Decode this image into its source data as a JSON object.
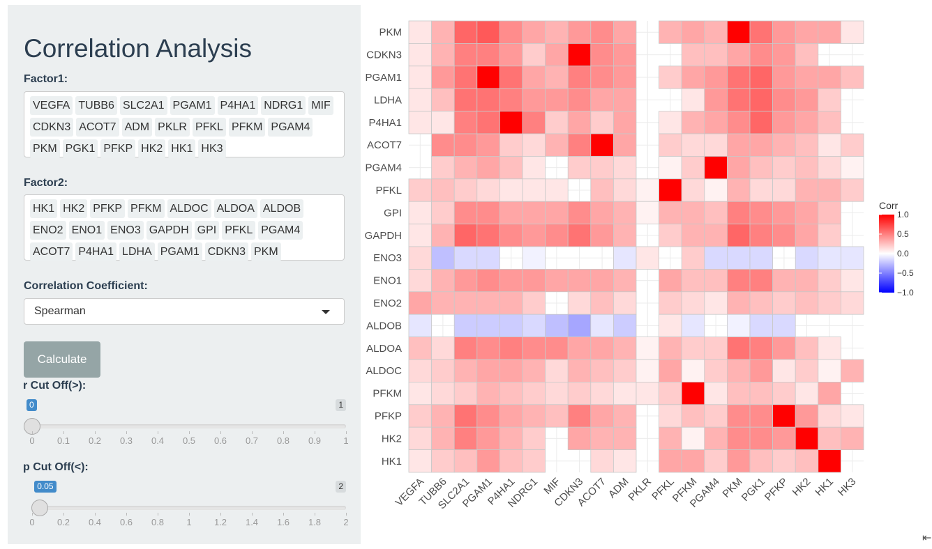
{
  "sidebar": {
    "title": "Correlation Analysis",
    "factor1_label": "Factor1:",
    "factor1_tags": [
      "VEGFA",
      "TUBB6",
      "SLC2A1",
      "PGAM1",
      "P4HA1",
      "NDRG1",
      "MIF",
      "CDKN3",
      "ACOT7",
      "ADM",
      "PKLR",
      "PFKL",
      "PFKM",
      "PGAM4",
      "PKM",
      "PGK1",
      "PFKP",
      "HK2",
      "HK1",
      "HK3"
    ],
    "factor2_label": "Factor2:",
    "factor2_tags": [
      "HK1",
      "HK2",
      "PFKP",
      "PFKM",
      "ALDOC",
      "ALDOA",
      "ALDOB",
      "ENO2",
      "ENO1",
      "ENO3",
      "GAPDH",
      "GPI",
      "PFKL",
      "PGAM4",
      "ACOT7",
      "P4HA1",
      "LDHA",
      "PGAM1",
      "CDKN3",
      "PKM"
    ],
    "coef_label": "Correlation Coefficient:",
    "coef_value": "Spearman",
    "calculate_label": "Calculate",
    "r_cutoff": {
      "label": "r Cut Off(>):",
      "value": 0,
      "value_label": "0",
      "min": 0,
      "max": 1,
      "max_label": "1",
      "ticks": [
        "0",
        "0.1",
        "0.2",
        "0.3",
        "0.4",
        "0.5",
        "0.6",
        "0.7",
        "0.8",
        "0.9",
        "1"
      ]
    },
    "p_cutoff": {
      "label": "p Cut Off(<):",
      "value": 0.05,
      "value_label": "0.05",
      "min": 0,
      "max": 2,
      "max_label": "2",
      "ticks": [
        "0",
        "0.2",
        "0.4",
        "0.6",
        "0.8",
        "1",
        "1.2",
        "1.4",
        "1.6",
        "1.8",
        "2"
      ]
    }
  },
  "chart_data": {
    "type": "heatmap",
    "x": [
      "VEGFA",
      "TUBB6",
      "SLC2A1",
      "PGAM1",
      "P4HA1",
      "NDRG1",
      "MIF",
      "CDKN3",
      "ACOT7",
      "ADM",
      "PKLR",
      "PFKL",
      "PFKM",
      "PGAM4",
      "PKM",
      "PGK1",
      "PFKP",
      "HK2",
      "HK1",
      "HK3"
    ],
    "y": [
      "PKM",
      "CDKN3",
      "PGAM1",
      "LDHA",
      "P4HA1",
      "ACOT7",
      "PGAM4",
      "PFKL",
      "GPI",
      "GAPDH",
      "ENO3",
      "ENO1",
      "ENO2",
      "ALDOB",
      "ALDOA",
      "ALDOC",
      "PFKM",
      "PFKP",
      "HK2",
      "HK1"
    ],
    "values": [
      [
        0.1,
        0.3,
        0.6,
        0.65,
        0.45,
        0.35,
        0.3,
        0.4,
        0.45,
        0.35,
        null,
        0.3,
        0.35,
        0.3,
        1.0,
        0.55,
        0.4,
        0.35,
        0.35,
        0.1
      ],
      [
        0.1,
        0.3,
        0.5,
        0.5,
        0.4,
        0.2,
        0.35,
        1.0,
        0.45,
        0.4,
        null,
        null,
        0.25,
        0.25,
        0.35,
        0.45,
        0.4,
        0.25,
        null,
        null
      ],
      [
        0.1,
        0.4,
        0.55,
        1.0,
        0.55,
        0.35,
        0.3,
        0.5,
        0.45,
        0.4,
        null,
        0.2,
        0.35,
        0.4,
        0.55,
        0.6,
        0.4,
        0.35,
        0.35,
        0.25
      ],
      [
        0.1,
        0.25,
        0.55,
        0.55,
        0.5,
        0.4,
        0.4,
        0.45,
        0.35,
        0.35,
        null,
        null,
        0.1,
        0.4,
        0.55,
        0.6,
        0.45,
        0.4,
        0.2,
        null
      ],
      [
        0.1,
        0.1,
        0.5,
        0.55,
        1.0,
        0.5,
        0.2,
        0.35,
        0.2,
        0.35,
        null,
        0.1,
        0.3,
        0.35,
        0.45,
        0.6,
        0.4,
        0.35,
        0.25,
        null
      ],
      [
        null,
        0.45,
        0.45,
        0.4,
        0.2,
        0.15,
        0.3,
        0.5,
        1.0,
        0.35,
        null,
        0.2,
        0.15,
        0.15,
        0.35,
        0.35,
        0.3,
        0.25,
        0.1,
        0.2
      ],
      [
        null,
        0.2,
        0.3,
        0.35,
        0.25,
        0.1,
        null,
        0.2,
        0.2,
        0.15,
        null,
        0.05,
        0.2,
        1.0,
        0.35,
        0.25,
        0.2,
        0.25,
        0.15,
        0.05
      ],
      [
        0.2,
        0.25,
        0.2,
        0.15,
        0.1,
        0.1,
        0.1,
        null,
        0.25,
        0.15,
        0.05,
        1.0,
        0.15,
        0.05,
        0.3,
        0.15,
        0.15,
        0.3,
        0.3,
        0.2
      ],
      [
        0.1,
        0.2,
        0.45,
        0.45,
        0.35,
        0.35,
        0.35,
        0.45,
        0.35,
        0.3,
        0.05,
        0.3,
        0.3,
        0.25,
        0.5,
        0.45,
        0.4,
        0.35,
        0.25,
        null
      ],
      [
        0.1,
        0.3,
        0.6,
        0.55,
        0.45,
        0.4,
        0.45,
        0.55,
        0.4,
        0.3,
        null,
        0.2,
        0.3,
        0.3,
        0.6,
        0.5,
        0.45,
        0.35,
        0.2,
        null
      ],
      [
        0.15,
        -0.25,
        -0.15,
        -0.15,
        null,
        -0.05,
        null,
        null,
        null,
        -0.1,
        0.1,
        null,
        0.2,
        -0.15,
        -0.15,
        -0.15,
        null,
        -0.15,
        -0.1,
        -0.1
      ],
      [
        0.15,
        0.3,
        0.4,
        0.45,
        0.4,
        0.4,
        0.35,
        0.35,
        0.35,
        0.3,
        null,
        0.35,
        0.25,
        0.25,
        0.5,
        0.5,
        0.3,
        0.3,
        0.2,
        0.1
      ],
      [
        0.35,
        0.3,
        0.3,
        0.3,
        0.3,
        0.2,
        null,
        0.15,
        0.25,
        0.15,
        null,
        0.2,
        0.15,
        0.1,
        0.3,
        0.25,
        0.2,
        0.25,
        0.2,
        0.15
      ],
      [
        -0.1,
        null,
        -0.2,
        -0.2,
        -0.2,
        -0.15,
        -0.25,
        -0.35,
        -0.1,
        -0.2,
        null,
        0.1,
        -0.1,
        null,
        -0.05,
        -0.15,
        -0.15,
        null,
        null,
        null
      ],
      [
        0.25,
        0.15,
        0.5,
        0.45,
        0.5,
        0.45,
        0.45,
        0.35,
        0.35,
        0.3,
        0.05,
        0.3,
        0.2,
        0.2,
        0.55,
        0.5,
        0.4,
        0.25,
        0.1,
        null
      ],
      [
        0.15,
        0.2,
        0.3,
        0.35,
        0.35,
        0.3,
        0.15,
        0.3,
        0.25,
        0.2,
        0.05,
        0.35,
        0.05,
        0.2,
        0.3,
        0.4,
        0.1,
        0.2,
        0.05,
        0.3
      ],
      [
        0.1,
        0.15,
        0.2,
        0.3,
        0.25,
        0.2,
        0.15,
        0.2,
        0.15,
        0.1,
        0.1,
        0.2,
        1.0,
        0.1,
        0.25,
        0.25,
        0.2,
        0.1,
        0.35,
        null
      ],
      [
        0.2,
        0.3,
        0.55,
        0.45,
        0.35,
        0.3,
        0.25,
        0.5,
        0.35,
        0.3,
        null,
        0.15,
        0.25,
        0.2,
        0.45,
        0.45,
        1.0,
        0.4,
        0.15,
        0.1
      ],
      [
        0.15,
        0.3,
        0.5,
        0.4,
        0.3,
        0.2,
        null,
        0.35,
        0.3,
        0.3,
        null,
        0.3,
        0.05,
        0.3,
        0.45,
        0.45,
        0.4,
        1.0,
        0.25,
        0.3
      ],
      [
        0.1,
        0.2,
        0.25,
        0.4,
        0.25,
        0.2,
        null,
        null,
        0.15,
        0.1,
        null,
        0.35,
        0.35,
        0.2,
        0.4,
        0.25,
        0.2,
        0.25,
        1.0,
        null
      ]
    ],
    "legend": {
      "title": "Corr",
      "ticks": [
        "1.0",
        "0.5",
        "0.0",
        "−0.5",
        "−1.0"
      ],
      "low_color": "#0000ff",
      "mid_color": "#ffffff",
      "high_color": "#ff0000"
    },
    "range": [
      -1,
      1
    ]
  }
}
